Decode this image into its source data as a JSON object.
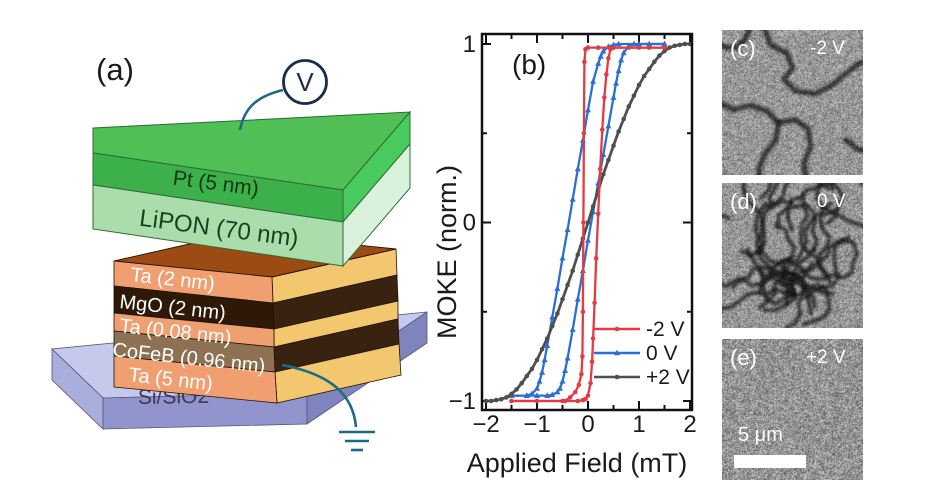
{
  "figure": {
    "panel_a": {
      "label": "(a)",
      "voltmeter_label": "V",
      "layers": [
        {
          "name": "Pt (5 nm)"
        },
        {
          "name": "LiPON (70 nm)"
        },
        {
          "name": "Ta (2 nm)"
        },
        {
          "name": "MgO (2 nm)"
        },
        {
          "name": "Ta (0.08 nm)"
        },
        {
          "name": "CoFeB (0.96 nm)"
        },
        {
          "name": "Ta (5 nm)"
        }
      ],
      "substrate": "Si/SiO2",
      "colors": {
        "pt_top": "#4fbf56",
        "pt_front": "#3bb04b",
        "pt_side": "#49ca5f",
        "lipon_front": "#abdcab",
        "lipon_side": "#d8f2dc",
        "stack_top": "#9c4b12",
        "ta_front": "#ef9f70",
        "mgo_front": "#2e1808",
        "cofeb_front": "#8d7152",
        "side_gold": "#f2c76e",
        "side_dark": "#3a2210",
        "substrate_top": "#c7c9ec",
        "substrate_front": "#9295cd",
        "substrate_side": "#8084bd",
        "substrate_left": "#aaaedd",
        "wire": "#1c6b86",
        "voltmeter": "#1b2d4d",
        "layer_text_light": "#ffffff",
        "pt_text": "#113613",
        "lipon_text": "#14431d",
        "substrate_text": "#3a3a55"
      }
    },
    "panel_c": {
      "label": "(c)",
      "voltage": "-2 V"
    },
    "panel_d": {
      "label": "(d)",
      "voltage": "0 V"
    },
    "panel_e": {
      "label": "(e)",
      "voltage": "+2 V",
      "scalebar_text": "5 μm"
    }
  },
  "chart_data": {
    "type": "line",
    "panel_label": "(b)",
    "xlabel": "Applied Field (mT)",
    "ylabel": "MOKE (norm.)",
    "xlim": [
      -2.08,
      2.08
    ],
    "ylim": [
      -1.05,
      1.05
    ],
    "xticks": [
      -2,
      -1,
      0,
      1,
      2
    ],
    "xtick_labels": [
      "−2",
      "−1",
      "0",
      "1",
      "2"
    ],
    "yticks": [
      -1,
      0,
      1
    ],
    "ytick_labels": [
      "−1",
      "0",
      "1"
    ],
    "minor_xticks": [
      -1.5,
      -0.5,
      0.5,
      1.5
    ],
    "minor_yticks": [
      -0.5,
      0.5
    ],
    "grid": false,
    "legend_position": "lower right",
    "series": [
      {
        "name": "-2 V",
        "color": "#e23b41",
        "marker": "circle",
        "branches": [
          [
            [
              -1.5,
              -1.0
            ],
            [
              -1.0,
              -1.0
            ],
            [
              -0.45,
              -1.0
            ],
            [
              -0.35,
              -0.98
            ],
            [
              -0.25,
              -0.95
            ],
            [
              -0.18,
              -0.91
            ],
            [
              -0.13,
              -0.85
            ],
            [
              -0.11,
              -0.75
            ],
            [
              -0.1,
              -0.5
            ],
            [
              -0.09,
              0.0
            ],
            [
              -0.08,
              0.5
            ],
            [
              -0.07,
              0.9
            ],
            [
              -0.05,
              0.97
            ],
            [
              0.0,
              0.98
            ],
            [
              0.2,
              0.98
            ],
            [
              0.5,
              0.98
            ],
            [
              1.0,
              0.98
            ],
            [
              1.5,
              0.98
            ]
          ],
          [
            [
              -1.5,
              -1.0
            ],
            [
              -0.5,
              -1.0
            ],
            [
              -0.2,
              -1.0
            ],
            [
              -0.1,
              -0.995
            ],
            [
              -0.05,
              -0.99
            ],
            [
              0.0,
              -0.97
            ],
            [
              0.05,
              -0.9
            ],
            [
              0.08,
              -0.78
            ],
            [
              0.1,
              -0.65
            ],
            [
              0.13,
              -0.45
            ],
            [
              0.16,
              -0.2
            ],
            [
              0.2,
              0.05
            ],
            [
              0.24,
              0.3
            ],
            [
              0.28,
              0.52
            ],
            [
              0.32,
              0.7
            ],
            [
              0.36,
              0.83
            ],
            [
              0.4,
              0.92
            ],
            [
              0.44,
              0.97
            ],
            [
              0.5,
              0.98
            ],
            [
              0.8,
              0.98
            ],
            [
              1.2,
              0.98
            ],
            [
              1.5,
              0.98
            ]
          ]
        ]
      },
      {
        "name": "0 V",
        "color": "#2a6fd4",
        "marker": "triangle",
        "branches": [
          [
            [
              -1.5,
              -0.97
            ],
            [
              -1.2,
              -0.97
            ],
            [
              -1.0,
              -0.97
            ],
            [
              -0.8,
              -0.97
            ],
            [
              -0.7,
              -0.965
            ],
            [
              -0.6,
              -0.95
            ],
            [
              -0.55,
              -0.93
            ],
            [
              -0.5,
              -0.89
            ],
            [
              -0.45,
              -0.83
            ],
            [
              -0.4,
              -0.76
            ],
            [
              -0.3,
              -0.6
            ],
            [
              -0.2,
              -0.43
            ],
            [
              -0.1,
              -0.27
            ],
            [
              0.0,
              -0.1
            ],
            [
              0.1,
              0.06
            ],
            [
              0.2,
              0.22
            ],
            [
              0.3,
              0.38
            ],
            [
              0.4,
              0.54
            ],
            [
              0.5,
              0.7
            ],
            [
              0.55,
              0.78
            ],
            [
              0.6,
              0.85
            ],
            [
              0.65,
              0.91
            ],
            [
              0.7,
              0.95
            ],
            [
              0.8,
              0.99
            ],
            [
              0.9,
              1.0
            ],
            [
              1.2,
              1.0
            ],
            [
              1.5,
              1.0
            ]
          ],
          [
            [
              1.5,
              1.0
            ],
            [
              1.0,
              1.0
            ],
            [
              0.6,
              1.0
            ],
            [
              0.5,
              0.995
            ],
            [
              0.4,
              0.985
            ],
            [
              0.3,
              0.96
            ],
            [
              0.25,
              0.93
            ],
            [
              0.2,
              0.89
            ],
            [
              0.1,
              0.79
            ],
            [
              0.0,
              0.63
            ],
            [
              -0.1,
              0.46
            ],
            [
              -0.2,
              0.3
            ],
            [
              -0.3,
              0.13
            ],
            [
              -0.4,
              -0.04
            ],
            [
              -0.5,
              -0.2
            ],
            [
              -0.6,
              -0.37
            ],
            [
              -0.7,
              -0.53
            ],
            [
              -0.8,
              -0.69
            ],
            [
              -0.85,
              -0.77
            ],
            [
              -0.9,
              -0.84
            ],
            [
              -0.95,
              -0.89
            ],
            [
              -1.0,
              -0.93
            ],
            [
              -1.1,
              -0.96
            ],
            [
              -1.2,
              -0.97
            ],
            [
              -1.5,
              -0.97
            ]
          ]
        ]
      },
      {
        "name": "+2 V",
        "color": "#4f4f4f",
        "marker": "circle",
        "branches": [
          [
            [
              -2.0,
              -1.0
            ],
            [
              -1.9,
              -1.0
            ],
            [
              -1.8,
              -0.995
            ],
            [
              -1.7,
              -0.99
            ],
            [
              -1.6,
              -0.98
            ],
            [
              -1.5,
              -0.96
            ],
            [
              -1.4,
              -0.935
            ],
            [
              -1.3,
              -0.9
            ],
            [
              -1.2,
              -0.86
            ],
            [
              -1.1,
              -0.82
            ],
            [
              -1.0,
              -0.77
            ],
            [
              -0.9,
              -0.71
            ],
            [
              -0.8,
              -0.65
            ],
            [
              -0.7,
              -0.58
            ],
            [
              -0.6,
              -0.51
            ],
            [
              -0.5,
              -0.43
            ],
            [
              -0.4,
              -0.35
            ],
            [
              -0.3,
              -0.27
            ],
            [
              -0.2,
              -0.18
            ],
            [
              -0.1,
              -0.09
            ],
            [
              0.0,
              0.0
            ],
            [
              0.1,
              0.09
            ],
            [
              0.2,
              0.18
            ],
            [
              0.3,
              0.27
            ],
            [
              0.4,
              0.35
            ],
            [
              0.5,
              0.43
            ],
            [
              0.6,
              0.51
            ],
            [
              0.7,
              0.58
            ],
            [
              0.8,
              0.65
            ],
            [
              0.9,
              0.71
            ],
            [
              1.0,
              0.77
            ],
            [
              1.1,
              0.82
            ],
            [
              1.2,
              0.86
            ],
            [
              1.3,
              0.9
            ],
            [
              1.4,
              0.935
            ],
            [
              1.5,
              0.96
            ],
            [
              1.6,
              0.98
            ],
            [
              1.7,
              0.99
            ],
            [
              1.8,
              0.995
            ],
            [
              1.9,
              1.0
            ],
            [
              2.0,
              1.0
            ]
          ]
        ]
      }
    ]
  }
}
